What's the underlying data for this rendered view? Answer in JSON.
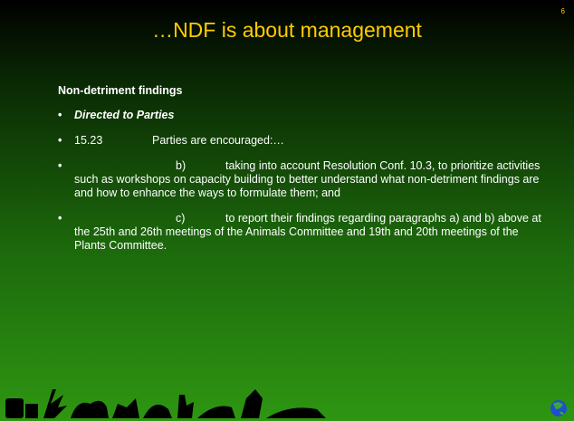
{
  "slide_number": "6",
  "title": "…NDF is about management",
  "heading": "Non-detriment findings",
  "bullets": [
    {
      "text": "Directed to Parties"
    },
    {
      "label": "15.23",
      "text": "Parties are encouraged:…"
    },
    {
      "label": "b)",
      "text": "taking into account Resolution Conf. 10.3, to prioritize activities such as workshops on capacity building to better understand what non-detriment findings are and how to enhance the ways to formulate them; and"
    },
    {
      "label": "c)",
      "text": "to report their findings regarding paragraphs a) and b) above at the 25th and 26th meetings of the Animals Committee and 19th and 20th meetings of the Plants Committee."
    }
  ]
}
